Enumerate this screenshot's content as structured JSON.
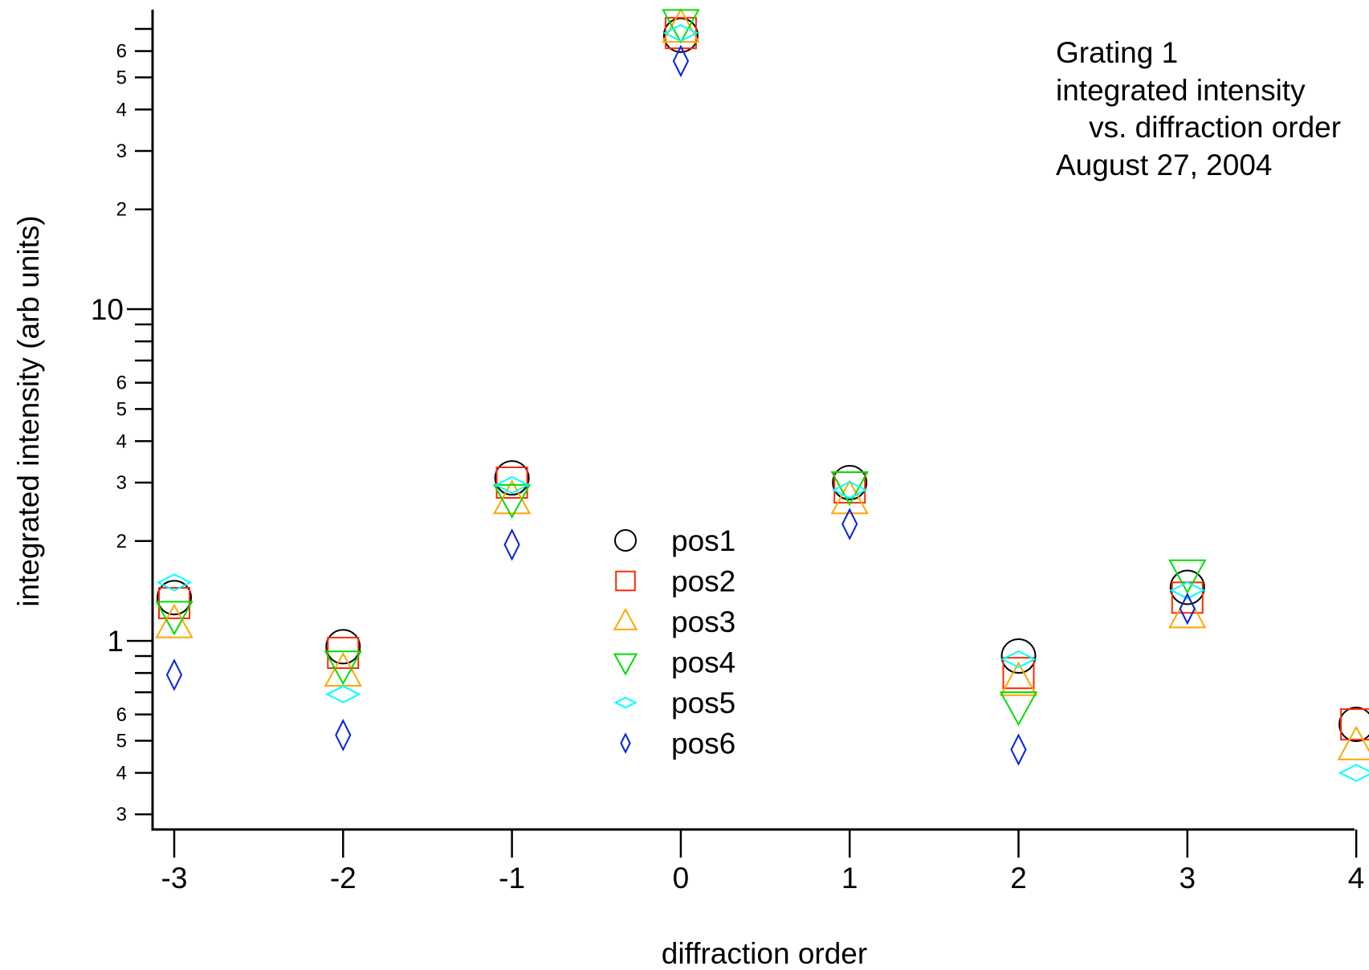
{
  "chart_data": {
    "type": "scatter",
    "title": "",
    "annotation": [
      "Grating 1",
      "integrated intensity",
      "    vs. diffraction order",
      "August 27, 2004"
    ],
    "xlabel": "diffraction order",
    "ylabel": "integrated intensity (arb units)",
    "xlim": [
      -3.12,
      4.0
    ],
    "ylim": [
      0.27,
      80
    ],
    "yscale": "log",
    "grid": false,
    "legend_position": "center",
    "x_ticks": [
      -3,
      -2,
      -1,
      0,
      1,
      2,
      3,
      4
    ],
    "x_tick_labels": [
      "-3",
      "-2",
      "-1",
      "0",
      "1",
      "2",
      "3",
      "4"
    ],
    "y_major_ticks": [
      1,
      10
    ],
    "y_major_labels": [
      "1",
      "10"
    ],
    "y_minor_ticks": [
      0.3,
      0.4,
      0.5,
      0.6,
      2,
      3,
      4,
      5,
      6,
      20,
      30,
      40,
      50,
      60
    ],
    "y_minor_labels": [
      "3",
      "4",
      "5",
      "6",
      "2",
      "3",
      "4",
      "5",
      "6",
      "2",
      "3",
      "4",
      "5",
      "6"
    ],
    "x": [
      -3,
      -2,
      -1,
      0,
      1,
      2,
      3,
      4
    ],
    "series": [
      {
        "name": "pos1",
        "marker": "circle",
        "color": "#000000",
        "values": [
          1.35,
          0.96,
          3.1,
          67,
          3.0,
          0.9,
          1.45,
          0.56
        ]
      },
      {
        "name": "pos2",
        "marker": "square",
        "color": "#ff2a00",
        "values": [
          1.3,
          0.92,
          3.0,
          68,
          2.9,
          0.8,
          1.35,
          0.56
        ]
      },
      {
        "name": "pos3",
        "marker": "triangle-up",
        "color": "#ffa500",
        "values": [
          1.12,
          0.8,
          2.65,
          70,
          2.65,
          0.75,
          1.2,
          0.48
        ]
      },
      {
        "name": "pos4",
        "marker": "triangle-down",
        "color": "#00dd00",
        "values": [
          1.2,
          0.85,
          2.7,
          73,
          2.95,
          0.64,
          1.6,
          null
        ]
      },
      {
        "name": "pos5",
        "marker": "diamond-wide",
        "color": "#00ffff",
        "values": [
          1.5,
          0.69,
          2.95,
          68,
          2.85,
          0.88,
          1.42,
          0.4
        ]
      },
      {
        "name": "pos6",
        "marker": "diamond-thin",
        "color": "#0022dd",
        "values": [
          0.79,
          0.52,
          1.95,
          56,
          2.25,
          0.47,
          1.25,
          null
        ]
      }
    ]
  }
}
